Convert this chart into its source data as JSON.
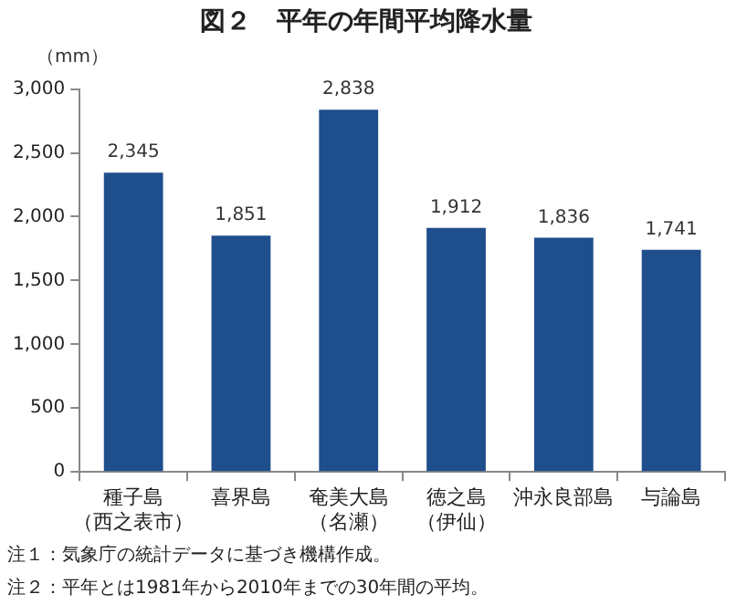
{
  "chart_data": {
    "type": "bar",
    "title": "図２　平年の年間平均降水量",
    "ylabel": "（mm）",
    "categories": [
      "種子島（西之表市）",
      "喜界島",
      "奄美大島（名瀬）",
      "徳之島（伊仙）",
      "沖永良部島",
      "与論島"
    ],
    "values": [
      2345,
      1851,
      2838,
      1912,
      1836,
      1741
    ],
    "value_labels": [
      "2,345",
      "1,851",
      "2,838",
      "1,912",
      "1,836",
      "1,741"
    ],
    "color": "#1f4e8c",
    "ylim": [
      0,
      3000
    ],
    "yticks": [
      0,
      {
        "value": 500,
        "label": "500"
      },
      {
        "value": 1000,
        "label": "1,000"
      },
      {
        "value": 1500,
        "label": "1,500"
      },
      {
        "value": 2000,
        "label": "2,000"
      },
      {
        "value": 2500,
        "label": "2,500"
      },
      {
        "value": 3000,
        "label": "3,000"
      }
    ],
    "grid": false,
    "legend": false,
    "annotations": [
      "注１：気象庁の統計データに基づき機構作成。",
      "注２：平年とは1981年から2010年までの30年間の平均。"
    ]
  }
}
